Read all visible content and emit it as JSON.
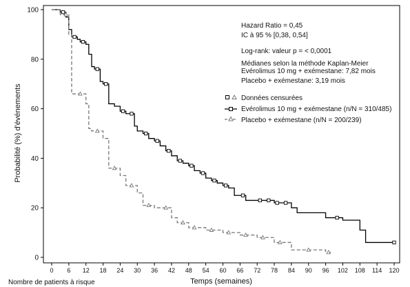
{
  "chart_data": {
    "type": "line",
    "title": "",
    "xlabel": "Temps (semaines)",
    "ylabel": "Probabilité (%) d'événements",
    "xlim": [
      0,
      120
    ],
    "ylim": [
      0,
      100
    ],
    "xticks": [
      "0",
      "6",
      "12",
      "18",
      "24",
      "30",
      "36",
      "42",
      "48",
      "54",
      "60",
      "66",
      "72",
      "78",
      "84",
      "90",
      "96",
      "102",
      "108",
      "114",
      "120"
    ],
    "yticks": [
      "0",
      "20",
      "40",
      "60",
      "80",
      "100"
    ],
    "grid": false,
    "annotations": [
      "Hazard Ratio = 0,45",
      "IC à 95 % [0,38, 0,54]",
      "Log-rank: valeur p = < 0,0001",
      "Médianes selon la méthode Kaplan-Meier",
      "Evérolimus 10 mg + exémestane: 7,82 mois",
      "Placebo + exémestane: 3,19 mois"
    ],
    "legend": {
      "placement": "right",
      "censored_label": "Données censurées",
      "entries": [
        "Evérolimus 10 mg + exémestane (n/N = 310/485)",
        "Placebo + exémestane (n/N = 200/239)"
      ]
    },
    "series": [
      {
        "name": "Evérolimus 10 mg + exémestane (n/N = 310/485)",
        "color": "#000000",
        "style": "solid",
        "marker": "square",
        "x": [
          0,
          3,
          5,
          6,
          7,
          9,
          10,
          12,
          13,
          14,
          15,
          17,
          18,
          20,
          22,
          24,
          26,
          29,
          30,
          32,
          34,
          36,
          38,
          40,
          42,
          44,
          46,
          48,
          50,
          52,
          54,
          56,
          58,
          60,
          62,
          64,
          66,
          68,
          72,
          78,
          84,
          86,
          96,
          102,
          108,
          110,
          120
        ],
        "y": [
          100,
          99,
          97,
          92,
          89,
          88,
          87,
          86,
          82,
          77,
          76,
          71,
          70,
          62,
          61,
          59,
          58,
          53,
          51,
          50,
          48,
          47,
          45,
          43,
          41,
          39,
          38,
          37,
          35,
          34,
          32,
          31,
          30,
          29,
          28,
          25,
          25,
          23,
          23,
          22,
          20,
          18,
          16,
          15,
          11,
          6,
          6
        ]
      },
      {
        "name": "Placebo + exémestane (n/N = 200/239)",
        "color": "#777777",
        "style": "dashed",
        "marker": "triangle",
        "x": [
          0,
          3,
          6,
          7,
          12,
          13,
          14,
          18,
          20,
          24,
          26,
          30,
          32,
          36,
          42,
          44,
          48,
          54,
          60,
          66,
          72,
          78,
          84,
          96,
          98
        ],
        "y": [
          100,
          98,
          90,
          66,
          62,
          52,
          51,
          48,
          36,
          33,
          29,
          26,
          21,
          20,
          16,
          14,
          12,
          11,
          10,
          9,
          8,
          6,
          3,
          2,
          2
        ]
      }
    ],
    "censored": [
      {
        "series": 0,
        "x": [
          4,
          8,
          11,
          16,
          19,
          25,
          28,
          33,
          37,
          41,
          45,
          49,
          53,
          57,
          61,
          67,
          73,
          76,
          79,
          82,
          100,
          120
        ],
        "marker": "square"
      },
      {
        "series": 1,
        "x": [
          5,
          10,
          16,
          22,
          28,
          34,
          40,
          46,
          50,
          56,
          62,
          68,
          74,
          80,
          90,
          97
        ],
        "marker": "triangle"
      }
    ]
  },
  "footer_note": "Nombre de patients à risque"
}
